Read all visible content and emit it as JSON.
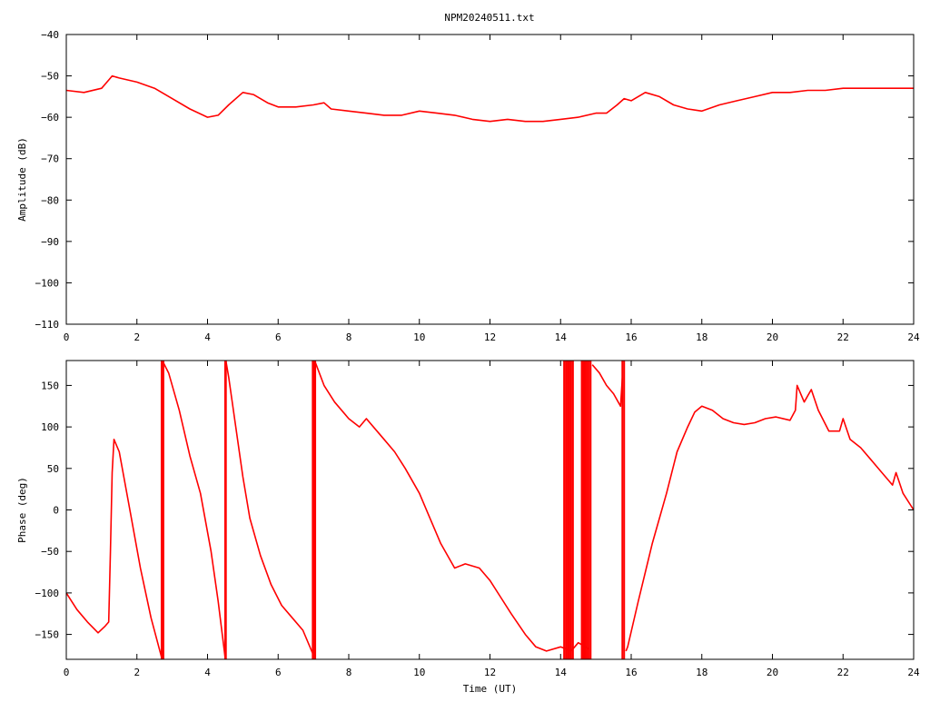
{
  "title": "NPM20240511.txt",
  "colors": {
    "series": "#ff0000",
    "axes": "#000000",
    "background": "#ffffff"
  },
  "chart_data": [
    {
      "type": "line",
      "name": "amplitude",
      "ylabel": "Amplitude (dB)",
      "xlabel": "",
      "xlim": [
        0,
        24
      ],
      "ylim": [
        -110,
        -40
      ],
      "xticks": [
        0,
        2,
        4,
        6,
        8,
        10,
        12,
        14,
        16,
        18,
        20,
        22,
        24
      ],
      "yticks": [
        -110,
        -100,
        -90,
        -80,
        -70,
        -60,
        -50,
        -40
      ],
      "grid": false,
      "series": [
        {
          "x": [
            0,
            0.5,
            1.0,
            1.2,
            1.3,
            1.5,
            2.0,
            2.5,
            3.0,
            3.5,
            4.0,
            4.3,
            4.6,
            5.0,
            5.3,
            5.7,
            6.0,
            6.5,
            7.0,
            7.3,
            7.5,
            8.0,
            8.5,
            9.0,
            9.5,
            10.0,
            10.5,
            11.0,
            11.5,
            12.0,
            12.5,
            13.0,
            13.5,
            14.0,
            14.5,
            15.0,
            15.3,
            15.6,
            15.8,
            16.0,
            16.4,
            16.8,
            17.2,
            17.6,
            18.0,
            18.5,
            19.0,
            19.5,
            20.0,
            20.5,
            21.0,
            21.5,
            22.0,
            22.5,
            23.0,
            23.5,
            24.0
          ],
          "y": [
            -53.5,
            -54,
            -53,
            -51,
            -50,
            -50.5,
            -51.5,
            -53,
            -55.5,
            -58,
            -60,
            -59.5,
            -57,
            -54,
            -54.5,
            -56.5,
            -57.5,
            -57.5,
            -57,
            -56.5,
            -58,
            -58.5,
            -59,
            -59.5,
            -59.5,
            -58.5,
            -59,
            -59.5,
            -60.5,
            -61,
            -60.5,
            -61,
            -61,
            -60.5,
            -60,
            -59,
            -59,
            -57,
            -55.5,
            -56,
            -54,
            -55,
            -57,
            -58,
            -58.5,
            -57,
            -56,
            -55,
            -54,
            -54,
            -53.5,
            -53.5,
            -53,
            -53,
            -53,
            -53,
            -53
          ]
        }
      ]
    },
    {
      "type": "line",
      "name": "phase",
      "ylabel": "Phase (deg)",
      "xlabel": "Time (UT)",
      "xlim": [
        0,
        24
      ],
      "ylim": [
        -180,
        180
      ],
      "xticks": [
        0,
        2,
        4,
        6,
        8,
        10,
        12,
        14,
        16,
        18,
        20,
        22,
        24
      ],
      "xtick_labels": [
        "0",
        "2",
        "4",
        "6",
        "8",
        "10",
        "12",
        "14",
        "16",
        "18",
        "20",
        "22",
        "24"
      ],
      "yticks": [
        -150,
        -100,
        -50,
        0,
        50,
        100,
        150
      ],
      "grid": false,
      "series": [
        {
          "x": [
            0,
            0.3,
            0.6,
            0.9,
            1.1,
            1.2,
            1.25,
            1.3,
            1.35,
            1.5,
            1.8,
            2.1,
            2.4,
            2.7
          ],
          "y": [
            -100,
            -120,
            -135,
            -148,
            -140,
            -135,
            -50,
            45,
            85,
            70,
            0,
            -70,
            -130,
            -178
          ]
        },
        {
          "x": [
            2.72,
            2.9,
            3.2,
            3.5,
            3.8,
            4.1,
            4.3,
            4.5
          ],
          "y": [
            180,
            165,
            120,
            65,
            20,
            -50,
            -110,
            -178
          ]
        },
        {
          "x": [
            4.52,
            4.6,
            4.8,
            5.0,
            5.2,
            5.5,
            5.8,
            6.1,
            6.4,
            6.7,
            7.0
          ],
          "y": [
            180,
            160,
            100,
            40,
            -10,
            -55,
            -90,
            -115,
            -130,
            -145,
            -175
          ]
        },
        {
          "x": [
            7.05,
            7.3,
            7.6,
            8.0,
            8.3,
            8.5,
            8.8,
            9.0,
            9.3,
            9.6,
            10.0,
            10.3,
            10.6,
            11.0,
            11.3,
            11.7,
            12.0,
            12.3,
            12.6,
            13.0,
            13.3,
            13.6,
            14.0,
            14.3,
            14.5,
            14.7,
            14.8
          ],
          "y": [
            178,
            150,
            130,
            110,
            100,
            110,
            95,
            85,
            70,
            50,
            20,
            -10,
            -40,
            -70,
            -65,
            -70,
            -85,
            -105,
            -125,
            -150,
            -165,
            -170,
            -165,
            -170,
            -160,
            -165,
            -168
          ]
        },
        {
          "x": [
            14.9,
            15.1,
            15.3,
            15.5,
            15.7,
            15.75
          ],
          "y": [
            175,
            165,
            150,
            140,
            125,
            160
          ]
        },
        {
          "x": [
            15.85,
            15.9,
            16.2,
            16.6,
            17.0,
            17.3,
            17.6,
            17.8,
            18.0,
            18.3,
            18.6,
            18.9,
            19.2,
            19.5,
            19.8,
            20.1,
            20.5,
            20.65,
            20.7,
            20.9,
            21.1,
            21.3,
            21.6,
            21.9,
            22.0,
            22.2,
            22.5,
            22.8,
            23.1,
            23.3,
            23.4,
            23.5,
            23.7,
            24.0
          ],
          "y": [
            -170,
            -165,
            -110,
            -40,
            20,
            70,
            100,
            118,
            125,
            120,
            110,
            105,
            103,
            105,
            110,
            112,
            108,
            120,
            150,
            130,
            145,
            120,
            95,
            95,
            110,
            85,
            75,
            60,
            45,
            35,
            30,
            45,
            20,
            0
          ]
        }
      ],
      "wrap_x": [
        2.7,
        2.72,
        2.75,
        4.5,
        4.52,
        6.98,
        7.0,
        7.02,
        7.05,
        14.1,
        14.15,
        14.2,
        14.25,
        14.3,
        14.35,
        14.6,
        14.65,
        14.7,
        14.75,
        14.8,
        14.85,
        15.75,
        15.8
      ]
    }
  ]
}
